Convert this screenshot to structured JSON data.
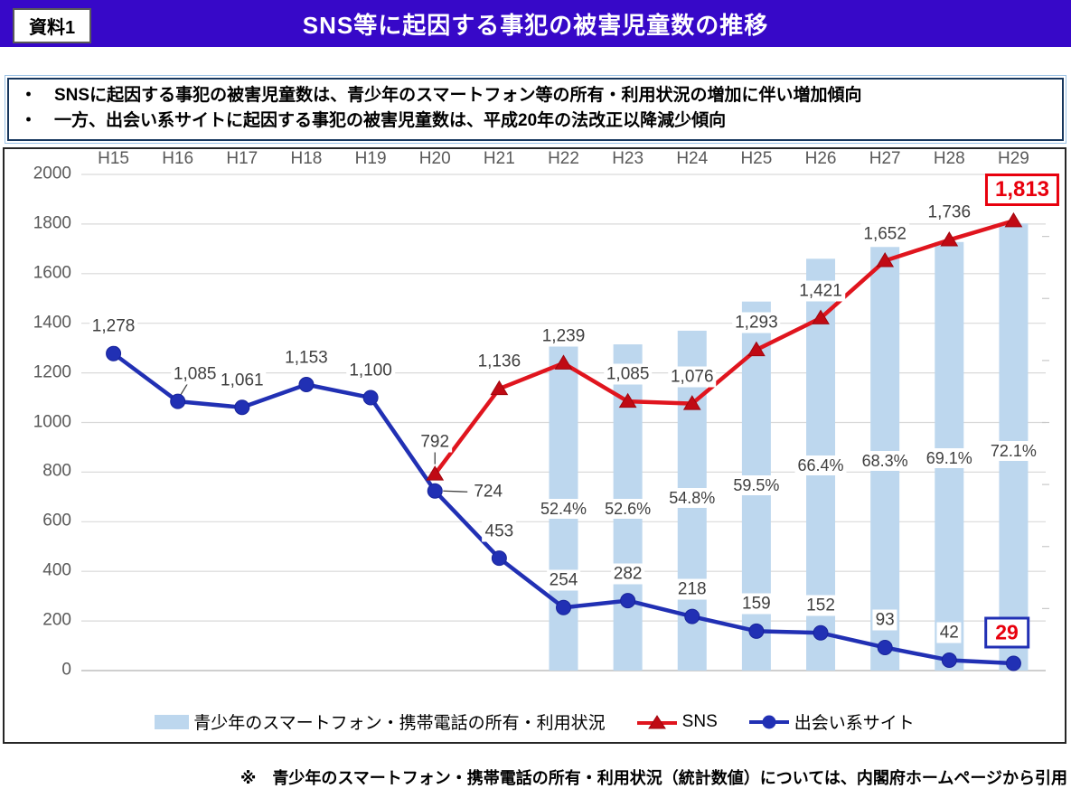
{
  "header": {
    "tag": "資料1",
    "title": "SNS等に起因する事犯の被害児童数の推移"
  },
  "summary": {
    "bullets": [
      "・　SNSに起因する事犯の被害児童数は、青少年のスマートフォン等の所有・利用状況の増加に伴い増加傾向",
      "・　一方、出会い系サイトに起因する事犯の被害児童数は、平成20年の法改正以降減少傾向"
    ]
  },
  "chart_data": {
    "type": "combo-bar-line",
    "categories": [
      "H15",
      "H16",
      "H17",
      "H18",
      "H19",
      "H20",
      "H21",
      "H22",
      "H23",
      "H24",
      "H25",
      "H26",
      "H27",
      "H28",
      "H29"
    ],
    "y_axis": {
      "min": 0,
      "max": 2000,
      "step": 200
    },
    "secondary_axis_note": "bars are plotted on a hidden 0-80% scale (1% = 25 primary units), minor ticks on right edge",
    "series": [
      {
        "name": "青少年のスマートフォン・携帯電話の所有・利用状況",
        "type": "bar",
        "color": "#BDD7EE",
        "percent_values": [
          null,
          null,
          null,
          null,
          null,
          null,
          null,
          52.4,
          52.6,
          54.8,
          59.5,
          66.4,
          68.3,
          69.1,
          72.1
        ],
        "percent_labels": [
          "52.4%",
          "52.6%",
          "54.8%",
          "59.5%",
          "66.4%",
          "68.3%",
          "69.1%",
          "72.1%"
        ]
      },
      {
        "name": "SNS",
        "type": "line",
        "marker": "triangle",
        "color": "#E0151E",
        "marker_color": "#C00A14",
        "values": [
          null,
          null,
          null,
          null,
          null,
          792,
          1136,
          1239,
          1085,
          1076,
          1293,
          1421,
          1652,
          1736,
          1813
        ],
        "labels": [
          "792",
          "1,136",
          "1,239",
          "1,085",
          "1,076",
          "1,293",
          "1,421",
          "1,652",
          "1,736",
          "1,813"
        ],
        "final_value_boxed": "1,813"
      },
      {
        "name": "出会い系サイト",
        "type": "line",
        "marker": "circle",
        "color": "#2130B4",
        "marker_color": "#2130B4",
        "values": [
          1278,
          1085,
          1061,
          1153,
          1100,
          724,
          453,
          254,
          282,
          218,
          159,
          152,
          93,
          42,
          29
        ],
        "labels": [
          "1,278",
          "1,085",
          "1,061",
          "1,153",
          "1,100",
          "724",
          "453",
          "254",
          "282",
          "218",
          "159",
          "152",
          "93",
          "42",
          "29"
        ],
        "final_value_boxed": "29"
      }
    ],
    "legend": [
      "青少年のスマートフォン・携帯電話の所有・利用状況",
      "SNS",
      "出会い系サイト"
    ],
    "legend_position": "bottom"
  },
  "footer": {
    "note": "※　青少年のスマートフォン・携帯電話の所有・利用状況（統計数値）については、内閣府ホームページから引用"
  },
  "colors": {
    "header_bg": "#3708C8",
    "bar_fill": "#BDD7EE",
    "sns_line": "#E0151E",
    "sns_marker": "#C00A14",
    "deai_line": "#2130B4",
    "axis_text": "#595959",
    "value_label": "#3F3F3F",
    "gridline": "#D9D9D9",
    "zero_line": "#BFBFBF",
    "highlight_red": "#E8000D",
    "box_border_blue": "#2130B4",
    "leader_line": "#404040"
  }
}
